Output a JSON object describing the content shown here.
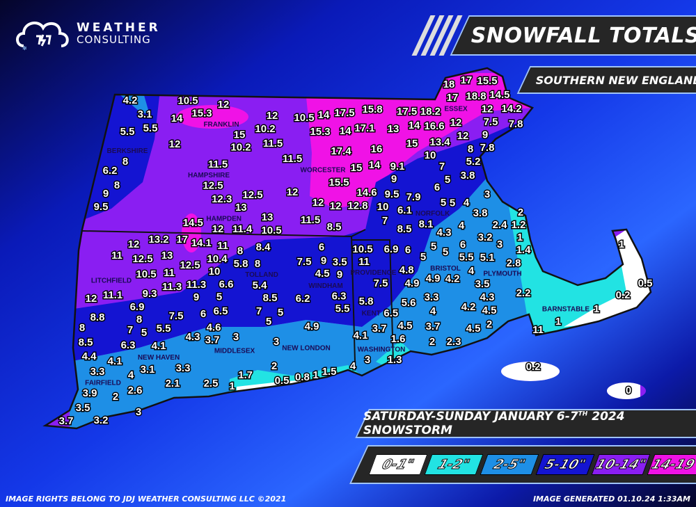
{
  "brand": {
    "line1": "WEATHER",
    "line2": "CONSULTING",
    "logo_text": "JDJ"
  },
  "header": {
    "title": "SNOWFALL TOTALS",
    "subtitle": "SOUTHERN NEW ENGLAND"
  },
  "storm": {
    "title_main": "SATURDAY-SUNDAY JANUARY 6-7",
    "title_sup": "TH",
    "title_end": " 2024 SNOWSTORM"
  },
  "legend": [
    {
      "label": "0-1\"",
      "color": "#ffffff"
    },
    {
      "label": "1-2\"",
      "color": "#22e3e3"
    },
    {
      "label": "2-5\"",
      "color": "#1e8fe6"
    },
    {
      "label": "5-10\"",
      "color": "#1414d2"
    },
    {
      "label": "10-14\"",
      "color": "#8a1ef2"
    },
    {
      "label": "14-19\"",
      "color": "#f012e6"
    }
  ],
  "footer": {
    "rights": "IMAGE RIGHTS BELONG TO JDJ WEATHER CONSULTING LLC ©2021",
    "generated": "IMAGE GENERATED 01.10.24 1:33AM"
  },
  "counties": [
    "BERKSHIRE",
    "FRANKLIN",
    "HAMPSHIRE",
    "HAMPDEN",
    "WORCESTER",
    "ESSEX",
    "NORFOLK",
    "BRISTOL",
    "PLYMOUTH",
    "BARNSTABLE",
    "LITCHFIELD",
    "TOLLAND",
    "MIDDLESEX",
    "NEW LONDON",
    "NEW HAVEN",
    "FAIRFIELD",
    "WASHINGTON",
    "PROVIDENCE",
    "KENT",
    "WINDHAM"
  ],
  "snowfall_totals": [
    "4.2",
    "3.1",
    "5.5",
    "5.5",
    "8",
    "6.2",
    "8",
    "9",
    "9.5",
    "10.5",
    "12",
    "14",
    "15.3",
    "12",
    "15",
    "10.2",
    "10.2",
    "11.5",
    "12",
    "11.5",
    "11.5",
    "12.5",
    "12.3",
    "12.5",
    "12",
    "13",
    "13",
    "14.5",
    "12",
    "11.4",
    "10.5",
    "10.5",
    "14",
    "17.5",
    "15.8",
    "15.3",
    "14",
    "17.1",
    "17.5",
    "18.2",
    "13",
    "14",
    "16.6",
    "12",
    "18",
    "17",
    "15.5",
    "17",
    "18.8",
    "14.5",
    "12",
    "14.2",
    "7.5",
    "7.8",
    "9",
    "15",
    "13.4",
    "12",
    "8",
    "7.8",
    "17.4",
    "16",
    "10",
    "5.2",
    "3.8",
    "15",
    "14",
    "9.1",
    "9",
    "7",
    "5",
    "6",
    "3",
    "15.5",
    "14.6",
    "9.5",
    "7.9",
    "12",
    "12",
    "12.8",
    "10",
    "6.1",
    "5",
    "5",
    "4",
    "3.8",
    "2",
    "2.4",
    "1.2",
    "4",
    "11.5",
    "8.5",
    "7",
    "8.5",
    "8.1",
    "4.3",
    "3.2",
    "3",
    "1",
    "1.4",
    "1",
    "0.5",
    "0.2",
    "1",
    "1",
    "11",
    "0.2",
    "0",
    "2.2",
    "10.5",
    "6.9",
    "6",
    "5",
    "5",
    "5",
    "6",
    "5.5",
    "5.1",
    "2.8",
    "11",
    "4.8",
    "4.9",
    "4.2",
    "4",
    "3.5",
    "7.5",
    "4.9",
    "3.3",
    "4.3",
    "5.8",
    "5.6",
    "4",
    "4.2",
    "4.5",
    "6.5",
    "3.7",
    "4.5",
    "3.7",
    "4.5",
    "2",
    "4.1",
    "1.6",
    "2",
    "2.3",
    "1.3",
    "3",
    "4",
    "12",
    "13.2",
    "17",
    "14.1",
    "11",
    "8",
    "8.4",
    "6",
    "11",
    "12.5",
    "13",
    "12.5",
    "10.4",
    "5.8",
    "8",
    "7.5",
    "9",
    "3.5",
    "10.5",
    "11",
    "10",
    "4.5",
    "9",
    "11.3",
    "11.3",
    "6.6",
    "5.4",
    "12",
    "11.1",
    "9.3",
    "9",
    "5",
    "8.5",
    "6.2",
    "6.3",
    "5.5",
    "6.9",
    "8.8",
    "7.5",
    "6",
    "6.5",
    "7",
    "5",
    "8",
    "8",
    "7",
    "5",
    "5.5",
    "4.6",
    "5",
    "4.9",
    "4.3",
    "3.7",
    "3",
    "3",
    "8.5",
    "6.3",
    "4.1",
    "4.4",
    "4.1",
    "3.1",
    "3.3",
    "2",
    "3.3",
    "4",
    "1.7",
    "0.5",
    "0.8",
    "1",
    "1.5",
    "2.1",
    "2.5",
    "1",
    "3.9",
    "2.6",
    "2",
    "3.5",
    "3",
    "3.7",
    "3.2"
  ]
}
